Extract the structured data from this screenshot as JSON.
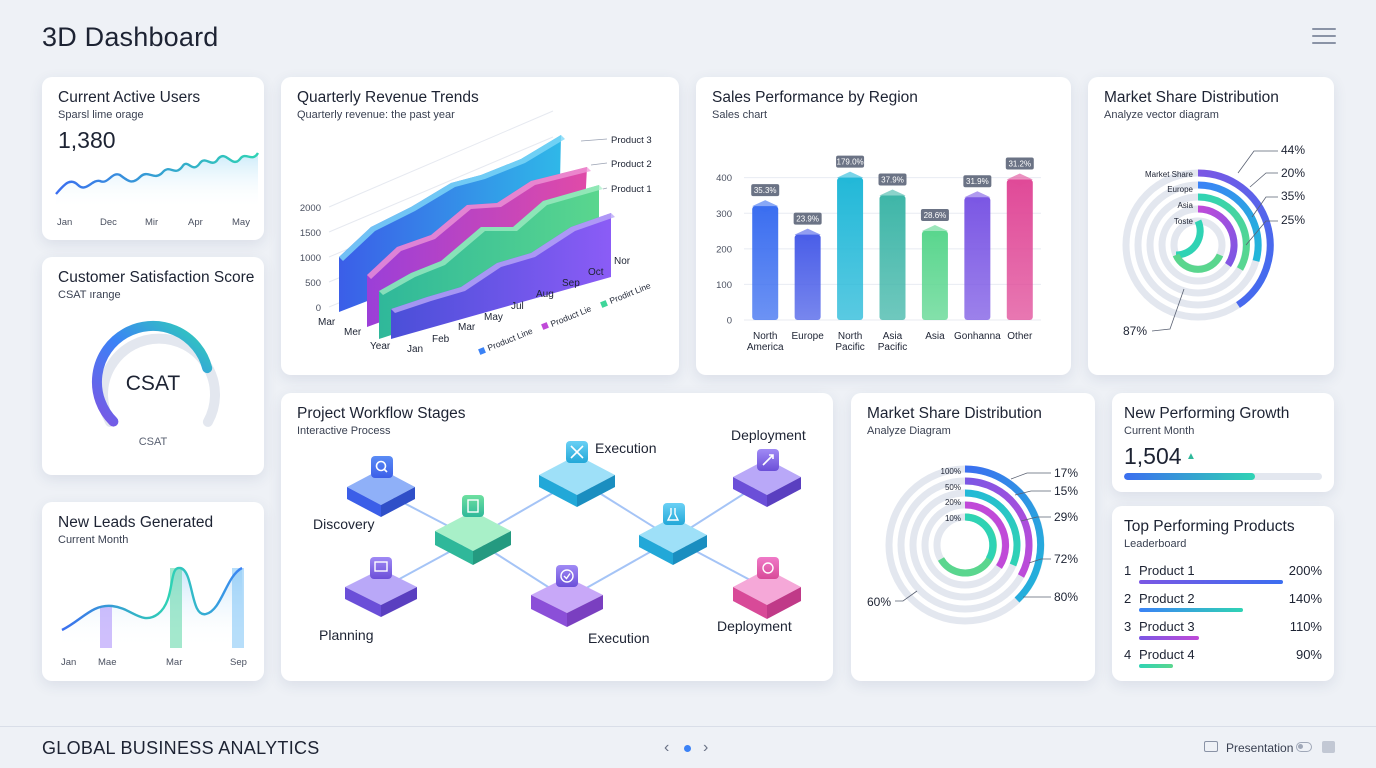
{
  "header": {
    "title": "3D Dashboard"
  },
  "active_users": {
    "title": "Current Active Users",
    "subtitle": "Sparsl lime orage",
    "value": "1,380",
    "x_labels": [
      "Jan",
      "Dec",
      "Mir",
      "Apr",
      "May"
    ]
  },
  "csat": {
    "title": "Customer Satisfaction Score",
    "subtitle": "CSAT ırange",
    "center_label": "CSAT",
    "bottom_label": "CSAT",
    "fill_fraction": 0.78
  },
  "new_leads": {
    "title": "New Leads Generated",
    "subtitle": "Current Month",
    "x_labels": [
      "Jan",
      "Mae",
      "Mar",
      "Sep"
    ]
  },
  "quarterly": {
    "title": "Quarterly Revenue Trends",
    "subtitle": "Quarterly revenue: the past year",
    "y_ticks": [
      "2000",
      "1500",
      "1000",
      "500",
      "0"
    ],
    "legend": [
      "Product 3",
      "Product 2",
      "Product 1"
    ],
    "x_labels": [
      "Mar",
      "Mer",
      "Year",
      "Jan",
      "Feb",
      "Mar",
      "May",
      "Jul",
      "Aug",
      "Sep",
      "Oct",
      "Nor"
    ],
    "line_labels": [
      "Product Line",
      "Product Lie",
      "Prodirt Line"
    ]
  },
  "sales": {
    "title": "Sales Performance by Region",
    "subtitle": "Sales chart"
  },
  "market_share_top": {
    "title": "Market Share Distribution",
    "subtitle": "Analyze vector diagram",
    "ring_labels": [
      "Market Share",
      "Europe",
      "Asia",
      "Toste"
    ],
    "percents": [
      "44%",
      "20%",
      "35%",
      "25%"
    ],
    "bottom_percent": "87%"
  },
  "workflow": {
    "title": "Project Workflow Stages",
    "subtitle": "Interactive Process",
    "stages": [
      "Discovery",
      "Execution",
      "Deployment",
      "Planning",
      "Execution",
      "Deployment"
    ]
  },
  "market_share_mid": {
    "title": "Market Share Distribution",
    "subtitle": "Analyze Diagram",
    "ring_labels": [
      "100%",
      "50%",
      "20%",
      "10%"
    ],
    "percents": [
      "17%",
      "15%",
      "29%",
      "72%",
      "80%"
    ],
    "left_percent": "60%"
  },
  "growth": {
    "title": "New Performing Growth",
    "subtitle": "Current Month",
    "value": "1,504",
    "progress": 0.66
  },
  "top_products": {
    "title": "Top Performing Products",
    "subtitle": "Leaderboard",
    "rows": [
      {
        "rank": "1",
        "name": "Product 1",
        "value": "200%"
      },
      {
        "rank": "2",
        "name": "Product 2",
        "value": "140%"
      },
      {
        "rank": "3",
        "name": "Product 3",
        "value": "110%"
      },
      {
        "rank": "4",
        "name": "Product 4",
        "value": "90%"
      }
    ]
  },
  "footer": {
    "brand": "GLOBAL BUSINESS ANALYTICS",
    "prev": "‹",
    "next": "›",
    "presentation": "Presentation"
  },
  "chart_data": [
    {
      "type": "bar",
      "title": "Sales Performance by Region",
      "subtitle": "Sales chart",
      "categories": [
        "North America",
        "Europe",
        "North Pacific",
        "Asia Pacific",
        "Asia",
        "Gonhanna",
        "Other"
      ],
      "values": [
        320,
        240,
        400,
        350,
        250,
        345,
        395
      ],
      "data_labels": [
        "35.3%",
        "23.9%",
        "179.0%",
        "37.9%",
        "28.6%",
        "31.9%",
        "31.2%"
      ],
      "y_ticks": [
        0,
        100,
        200,
        300,
        400
      ],
      "ylim": [
        0,
        430
      ],
      "grid": true,
      "colors": [
        "#3b6ef0",
        "#4a5ee8",
        "#22b8d8",
        "#3fb6a8",
        "#5ad68e",
        "#7b57e4",
        "#e04a98"
      ]
    }
  ]
}
